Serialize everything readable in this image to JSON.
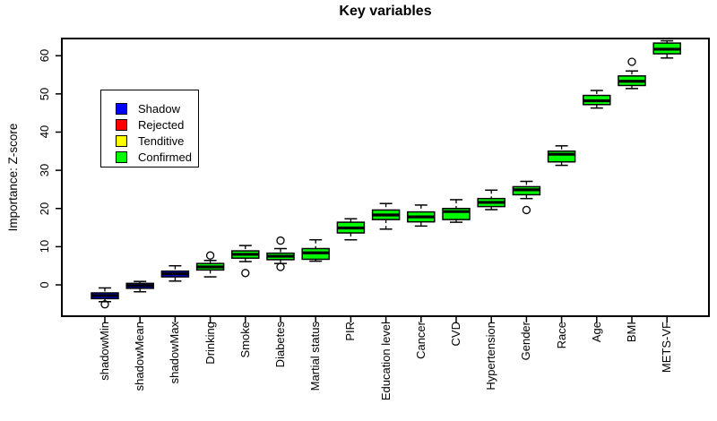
{
  "figure": {
    "title": "Key variables",
    "y_axis": {
      "label": "Importance: Z-score"
    },
    "legend": {
      "items": [
        {
          "label": "Shadow",
          "color": "#0000ff"
        },
        {
          "label": "Rejected",
          "color": "#ff0000"
        },
        {
          "label": "Tenditive",
          "color": "#ffff00"
        },
        {
          "label": "Confirmed",
          "color": "#00ff00"
        }
      ]
    }
  },
  "chart_data": {
    "type": "boxplot",
    "title": "Key variables",
    "xlabel": "",
    "ylabel": "Importance: Z-score",
    "ylim": [
      -8.2,
      64.5
    ],
    "y_ticks": [
      0,
      10,
      20,
      30,
      40,
      50,
      60
    ],
    "grid": false,
    "legend_position": "upper-left-inside",
    "group_colors": {
      "shadow": "#0000ff",
      "rejected": "#ff0000",
      "tentative": "#ffff00",
      "confirmed": "#00ff00"
    },
    "categories": [
      "shadowMin",
      "shadowMean",
      "shadowMax",
      "Drinking",
      "Smoke",
      "Diabetes",
      "Martial status",
      "PIR",
      "Education level",
      "Cancer",
      "CVD",
      "Hypertension",
      "Gender",
      "Race",
      "Age",
      "BMI",
      "METS-VF"
    ],
    "series": [
      {
        "label": "shadowMin",
        "group": "shadow",
        "lo": -4.4,
        "q1": -3.6,
        "median": -2.8,
        "q3": -2.1,
        "hi": -0.8,
        "outliers": [
          -5.1
        ]
      },
      {
        "label": "shadowMean",
        "group": "shadow",
        "lo": -1.8,
        "q1": -0.9,
        "median": -0.2,
        "q3": 0.4,
        "hi": 0.9,
        "outliers": []
      },
      {
        "label": "shadowMax",
        "group": "shadow",
        "lo": 1.0,
        "q1": 2.1,
        "median": 2.9,
        "q3": 3.6,
        "hi": 5.0,
        "outliers": []
      },
      {
        "label": "Drinking",
        "group": "confirmed",
        "lo": 2.1,
        "q1": 3.9,
        "median": 4.7,
        "q3": 5.6,
        "hi": 6.4,
        "outliers": [
          7.7
        ]
      },
      {
        "label": "Smoke",
        "group": "confirmed",
        "lo": 6.1,
        "q1": 7.0,
        "median": 8.0,
        "q3": 8.9,
        "hi": 10.3,
        "outliers": [
          3.1
        ]
      },
      {
        "label": "Diabetes",
        "group": "confirmed",
        "lo": 5.6,
        "q1": 6.6,
        "median": 7.5,
        "q3": 8.3,
        "hi": 9.5,
        "outliers": [
          11.6,
          4.7
        ]
      },
      {
        "label": "Martial status",
        "group": "confirmed",
        "lo": 6.2,
        "q1": 6.7,
        "median": 8.4,
        "q3": 9.5,
        "hi": 11.8,
        "outliers": []
      },
      {
        "label": "PIR",
        "group": "confirmed",
        "lo": 11.8,
        "q1": 13.6,
        "median": 14.9,
        "q3": 16.4,
        "hi": 17.3,
        "outliers": []
      },
      {
        "label": "Education level",
        "group": "confirmed",
        "lo": 14.6,
        "q1": 17.1,
        "median": 18.3,
        "q3": 19.6,
        "hi": 21.3,
        "outliers": []
      },
      {
        "label": "Cancer",
        "group": "confirmed",
        "lo": 15.4,
        "q1": 16.5,
        "median": 17.8,
        "q3": 19.1,
        "hi": 20.9,
        "outliers": []
      },
      {
        "label": "CVD",
        "group": "confirmed",
        "lo": 16.4,
        "q1": 17.1,
        "median": 19.2,
        "q3": 20.0,
        "hi": 22.3,
        "outliers": []
      },
      {
        "label": "Hypertension",
        "group": "confirmed",
        "lo": 19.7,
        "q1": 20.5,
        "median": 21.6,
        "q3": 22.6,
        "hi": 24.8,
        "outliers": []
      },
      {
        "label": "Gender",
        "group": "confirmed",
        "lo": 22.6,
        "q1": 23.6,
        "median": 24.9,
        "q3": 25.7,
        "hi": 27.1,
        "outliers": [
          19.6
        ]
      },
      {
        "label": "Race",
        "group": "confirmed",
        "lo": 31.3,
        "q1": 32.2,
        "median": 34.2,
        "q3": 35.0,
        "hi": 36.4,
        "outliers": []
      },
      {
        "label": "Age",
        "group": "confirmed",
        "lo": 46.3,
        "q1": 47.2,
        "median": 48.2,
        "q3": 49.6,
        "hi": 50.9,
        "outliers": []
      },
      {
        "label": "BMI",
        "group": "confirmed",
        "lo": 51.4,
        "q1": 52.2,
        "median": 53.3,
        "q3": 54.7,
        "hi": 56.0,
        "outliers": [
          58.4
        ]
      },
      {
        "label": "METS-VF",
        "group": "confirmed",
        "lo": 59.4,
        "q1": 60.5,
        "median": 61.7,
        "q3": 63.3,
        "hi": 63.9,
        "outliers": []
      }
    ]
  }
}
